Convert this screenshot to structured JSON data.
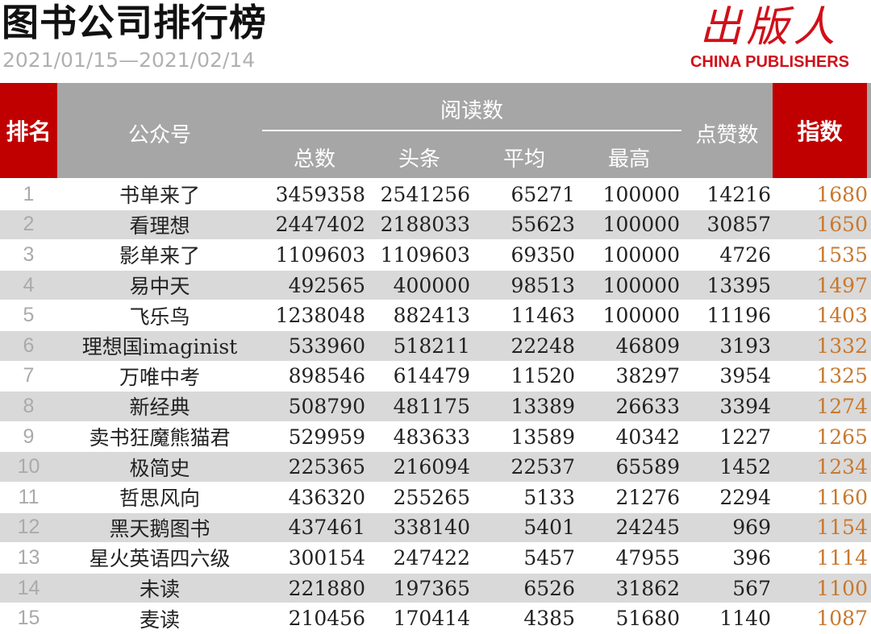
{
  "header": {
    "title": "图书公司排行榜",
    "date_range": "2021/01/15—2021/02/14",
    "logo_cn": "出版人",
    "logo_en": "CHINA PUBLISHERS"
  },
  "colors": {
    "red": "#c00000",
    "header_gray": "#a6a6a6",
    "alt_row": "#d9d9d9",
    "index_text": "#c8782e"
  },
  "table": {
    "columns": {
      "rank": "排名",
      "account": "公众号",
      "reads_group": "阅读数",
      "total": "总数",
      "headline": "头条",
      "average": "平均",
      "max": "最高",
      "likes": "点赞数",
      "index": "指数"
    },
    "rows": [
      {
        "rank": "1",
        "name": "书单来了",
        "total": "3459358",
        "headline": "2541256",
        "avg": "65271",
        "max": "100000",
        "likes": "14216",
        "index": "1680"
      },
      {
        "rank": "2",
        "name": "看理想",
        "total": "2447402",
        "headline": "2188033",
        "avg": "55623",
        "max": "100000",
        "likes": "30857",
        "index": "1650"
      },
      {
        "rank": "3",
        "name": "影单来了",
        "total": "1109603",
        "headline": "1109603",
        "avg": "69350",
        "max": "100000",
        "likes": "4726",
        "index": "1535"
      },
      {
        "rank": "4",
        "name": "易中天",
        "total": "492565",
        "headline": "400000",
        "avg": "98513",
        "max": "100000",
        "likes": "13395",
        "index": "1497"
      },
      {
        "rank": "5",
        "name": "飞乐鸟",
        "total": "1238048",
        "headline": "882413",
        "avg": "11463",
        "max": "100000",
        "likes": "11196",
        "index": "1403"
      },
      {
        "rank": "6",
        "name": "理想国imaginist",
        "total": "533960",
        "headline": "518211",
        "avg": "22248",
        "max": "46809",
        "likes": "3193",
        "index": "1332"
      },
      {
        "rank": "7",
        "name": "万唯中考",
        "total": "898546",
        "headline": "614479",
        "avg": "11520",
        "max": "38297",
        "likes": "3954",
        "index": "1325"
      },
      {
        "rank": "8",
        "name": "新经典",
        "total": "508790",
        "headline": "481175",
        "avg": "13389",
        "max": "26633",
        "likes": "3394",
        "index": "1274"
      },
      {
        "rank": "9",
        "name": "卖书狂魔熊猫君",
        "total": "529959",
        "headline": "483633",
        "avg": "13589",
        "max": "40342",
        "likes": "1227",
        "index": "1265"
      },
      {
        "rank": "10",
        "name": "极简史",
        "total": "225365",
        "headline": "216094",
        "avg": "22537",
        "max": "65589",
        "likes": "1452",
        "index": "1234"
      },
      {
        "rank": "11",
        "name": "哲思风向",
        "total": "436320",
        "headline": "255265",
        "avg": "5133",
        "max": "21276",
        "likes": "2294",
        "index": "1160"
      },
      {
        "rank": "12",
        "name": "黑天鹅图书",
        "total": "437461",
        "headline": "338140",
        "avg": "5401",
        "max": "24245",
        "likes": "969",
        "index": "1154"
      },
      {
        "rank": "13",
        "name": "星火英语四六级",
        "total": "300154",
        "headline": "247422",
        "avg": "5457",
        "max": "47955",
        "likes": "396",
        "index": "1114"
      },
      {
        "rank": "14",
        "name": "未读",
        "total": "221880",
        "headline": "197365",
        "avg": "6526",
        "max": "31862",
        "likes": "567",
        "index": "1100"
      },
      {
        "rank": "15",
        "name": "麦读",
        "total": "210456",
        "headline": "170414",
        "avg": "4385",
        "max": "51680",
        "likes": "1140",
        "index": "1087"
      }
    ]
  }
}
